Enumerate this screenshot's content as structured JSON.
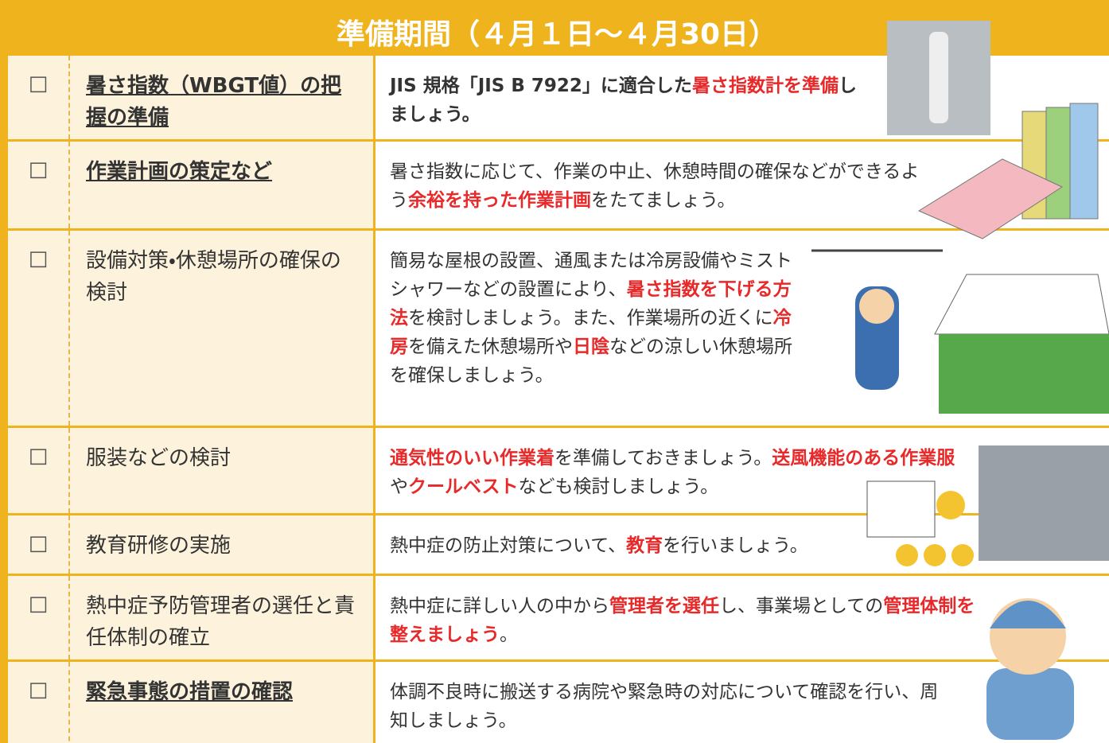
{
  "header": {
    "title": "準備期間（４月１日～４月30日）"
  },
  "rows": [
    {
      "check": "□",
      "item": "暑さ指数（WBGT値）の把握の準備",
      "underline": true,
      "bold": true,
      "description": [
        {
          "text": "JIS 規格「JIS B 7922」に適合した",
          "red": false
        },
        {
          "text": "暑さ指数計を準備",
          "red": true
        },
        {
          "text": "しましょう。",
          "red": false
        }
      ]
    },
    {
      "check": "□",
      "item": "作業計画の策定など",
      "underline": true,
      "bold": false,
      "description": [
        {
          "text": "暑さ指数に応じて、作業の中止、休憩時間の確保などができるよう",
          "red": false
        },
        {
          "text": "余裕を持った作業計画",
          "red": true
        },
        {
          "text": "をたてましょう。",
          "red": false
        }
      ]
    },
    {
      "check": "□",
      "item": "設備対策・休憩場所の確保の検討",
      "underline": false,
      "bold": false,
      "description": [
        {
          "text": "簡易な屋根の設置、通風または冷房設備やミストシャワーなどの設置により、",
          "red": false
        },
        {
          "text": "暑さ指数を下げる方法",
          "red": true
        },
        {
          "text": "を検討しましょう。また、作業場所の近くに",
          "red": false
        },
        {
          "text": "冷房",
          "red": true
        },
        {
          "text": "を備えた休憩場所や",
          "red": false
        },
        {
          "text": "日陰",
          "red": true
        },
        {
          "text": "などの涼しい休憩場所を確保しましょう。",
          "red": false
        }
      ]
    },
    {
      "check": "□",
      "item": "服装などの検討",
      "underline": false,
      "bold": false,
      "description": [
        {
          "text": "通気性のいい作業着",
          "red": true
        },
        {
          "text": "を準備しておきましょう。",
          "red": false
        },
        {
          "text": "送風機能のある作業服",
          "red": true
        },
        {
          "text": "や",
          "red": false
        },
        {
          "text": "クールベスト",
          "red": true
        },
        {
          "text": "なども検討しましょう。",
          "red": false
        }
      ]
    },
    {
      "check": "□",
      "item": "教育研修の実施",
      "underline": false,
      "bold": false,
      "description": [
        {
          "text": "熱中症の防止対策について、",
          "red": false
        },
        {
          "text": "教育",
          "red": true
        },
        {
          "text": "を行いましょう。",
          "red": false
        }
      ]
    },
    {
      "check": "□",
      "item": "熱中症予防管理者の選任と責任体制の確立",
      "underline": false,
      "bold": false,
      "description": [
        {
          "text": "熱中症に詳しい人の中から",
          "red": false
        },
        {
          "text": "管理者を選任",
          "red": true
        },
        {
          "text": "し、事業場としての",
          "red": false
        },
        {
          "text": "管理体制を整えましょう",
          "red": true
        },
        {
          "text": "。",
          "red": false
        }
      ]
    },
    {
      "check": "□",
      "item": "緊急事態の措置の確認",
      "underline": true,
      "bold": false,
      "description": [
        {
          "text": "体調不良時に搬送する病院や緊急時の対応について確認を行い、周知しましょう。",
          "red": false
        }
      ]
    }
  ]
}
